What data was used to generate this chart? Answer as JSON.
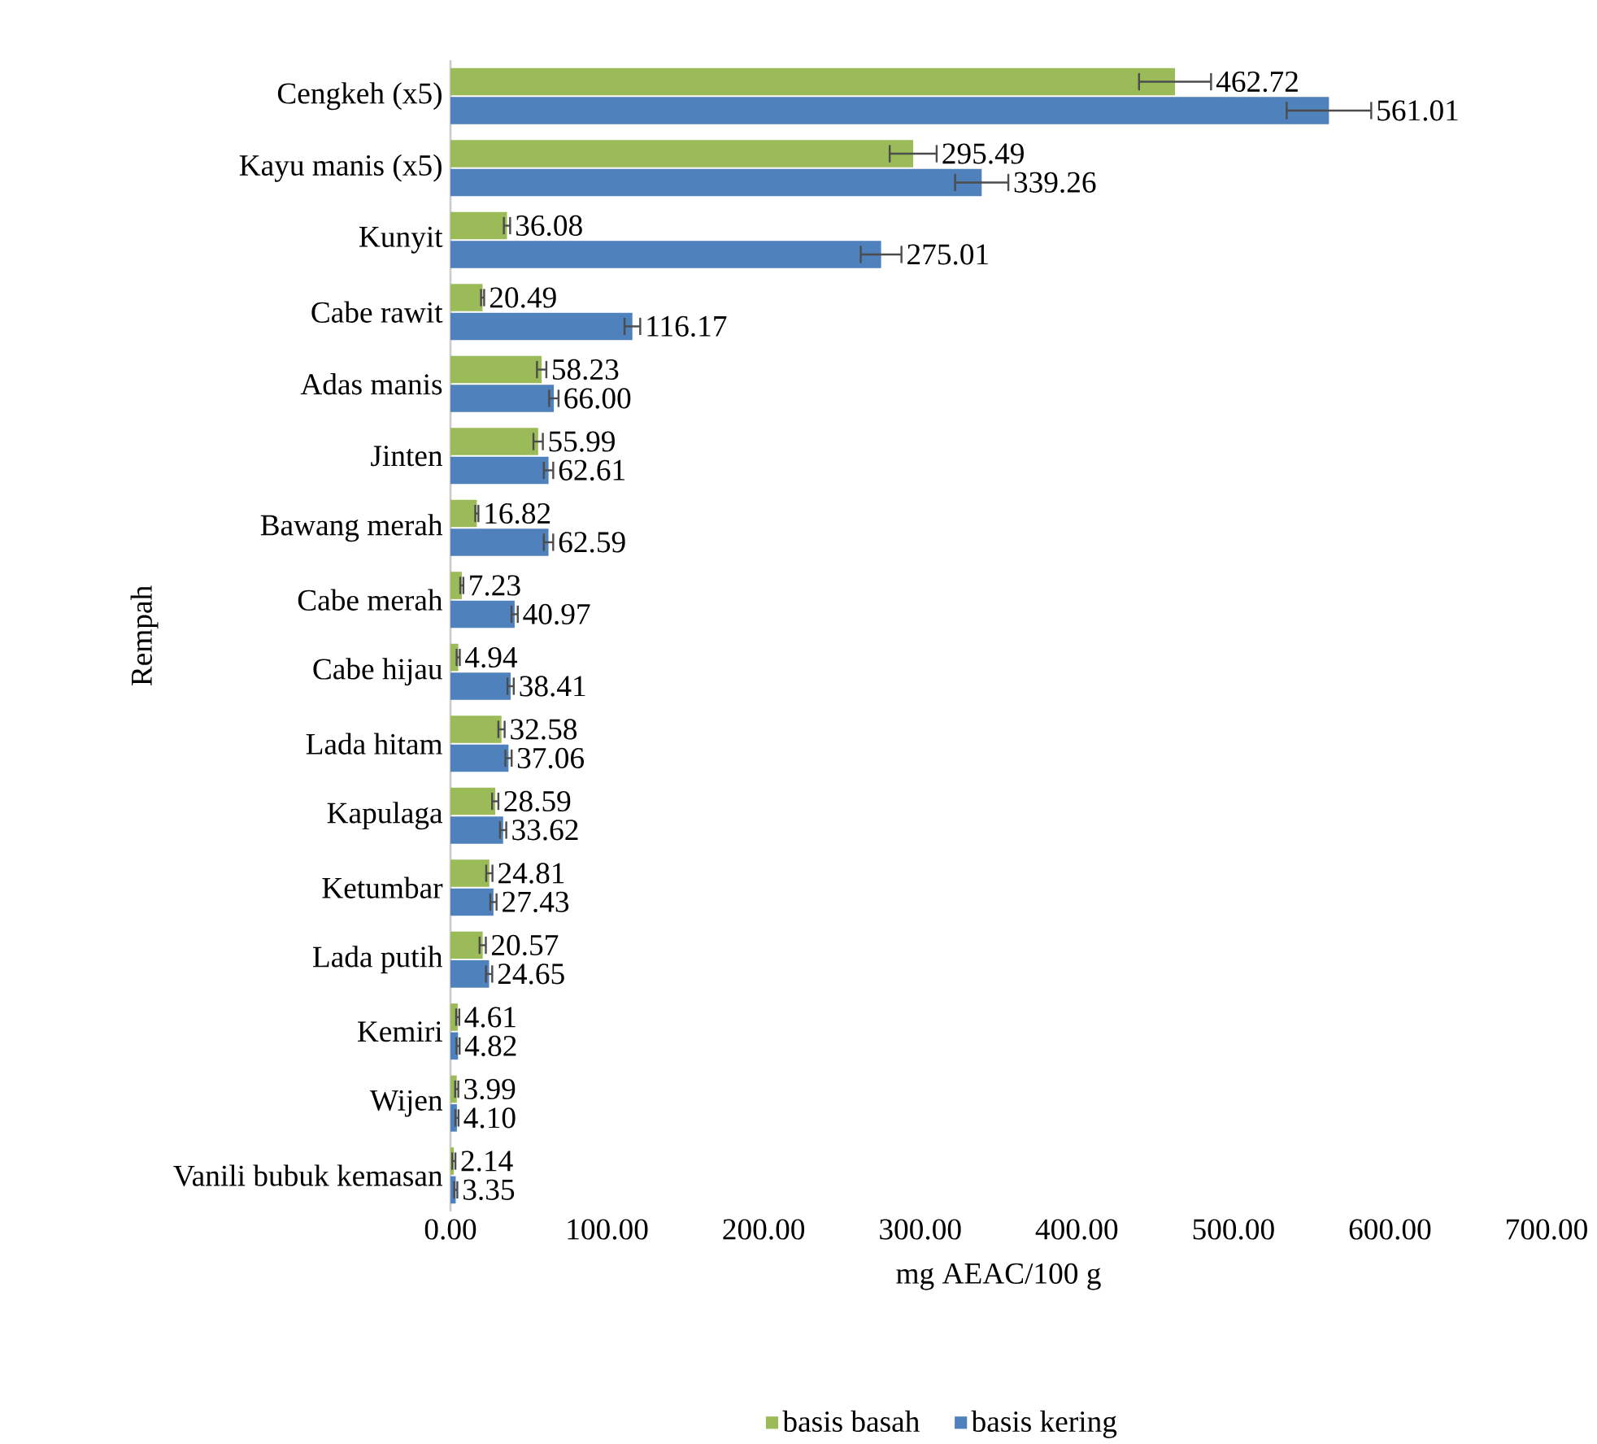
{
  "chart_data": {
    "type": "bar",
    "orientation": "horizontal",
    "xlabel": "mg AEAC/100 g",
    "ylabel": "Rempah",
    "categories": [
      "Cengkeh (x5)",
      "Kayu manis (x5)",
      "Kunyit",
      "Cabe rawit",
      "Adas manis",
      "Jinten",
      "Bawang merah",
      "Cabe merah",
      "Cabe hijau",
      "Lada hitam",
      "Kapulaga",
      "Ketumbar",
      "Lada putih",
      "Kemiri",
      "Wijen",
      "Vanili bubuk kemasan"
    ],
    "series": [
      {
        "name": "basis basah",
        "color": "#9bbb59",
        "values": [
          462.72,
          295.49,
          36.08,
          20.49,
          58.23,
          55.99,
          16.82,
          7.23,
          4.94,
          32.58,
          28.59,
          24.81,
          20.57,
          4.61,
          3.99,
          2.14
        ],
        "errors": [
          23,
          15,
          2,
          1,
          3,
          3,
          1,
          1,
          1,
          2,
          2,
          2,
          2,
          1,
          1,
          1
        ],
        "value_labels": [
          "462.72",
          "295.49",
          "36.08",
          "20.49",
          "58.23",
          "55.99",
          "16.82",
          "7.23",
          "4.94",
          "32.58",
          "28.59",
          "24.81",
          "20.57",
          "4.61",
          "3.99",
          "2.14"
        ]
      },
      {
        "name": "basis kering",
        "color": "#4f81bd",
        "values": [
          561.01,
          339.26,
          275.01,
          116.17,
          66.0,
          62.61,
          62.59,
          40.97,
          38.41,
          37.06,
          33.62,
          27.43,
          24.65,
          4.82,
          4.1,
          3.35
        ],
        "errors": [
          27,
          17,
          13,
          5,
          3,
          3,
          3,
          2,
          2,
          2,
          2,
          2,
          2,
          1,
          1,
          1
        ],
        "value_labels": [
          "561.01",
          "339.26",
          "275.01",
          "116.17",
          "66.00",
          "62.61",
          "62.59",
          "40.97",
          "38.41",
          "37.06",
          "33.62",
          "27.43",
          "24.65",
          "4.82",
          "4.10",
          "3.35"
        ]
      }
    ],
    "xlim": [
      0,
      700
    ],
    "xticks": [
      {
        "value": 0,
        "label": "0.00"
      },
      {
        "value": 100,
        "label": "100.00"
      },
      {
        "value": 200,
        "label": "200.00"
      },
      {
        "value": 300,
        "label": "300.00"
      },
      {
        "value": 400,
        "label": "400.00"
      },
      {
        "value": 500,
        "label": "500.00"
      },
      {
        "value": 600,
        "label": "600.00"
      },
      {
        "value": 700,
        "label": "700.00"
      }
    ],
    "legend": "bottom"
  }
}
